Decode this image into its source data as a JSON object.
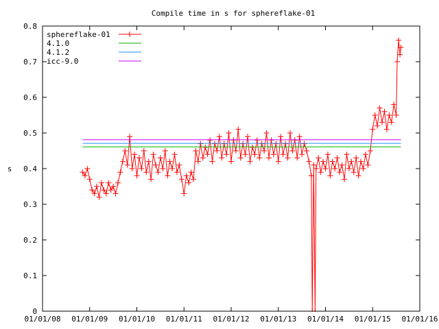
{
  "chart_data": {
    "type": "line",
    "title": "Compile time in s for sphereflake-01",
    "xlabel": "",
    "ylabel": "s",
    "xlim": [
      2008,
      2016
    ],
    "ylim": [
      0,
      0.8
    ],
    "x_ticks": [
      2008,
      2009,
      2010,
      2011,
      2012,
      2013,
      2014,
      2015,
      2016
    ],
    "x_tick_labels": [
      "01/01/08",
      "01/01/09",
      "01/01/10",
      "01/01/11",
      "01/01/12",
      "01/01/13",
      "01/01/14",
      "01/01/15",
      "01/01/16"
    ],
    "y_ticks": [
      0,
      0.1,
      0.2,
      0.3,
      0.4,
      0.5,
      0.6,
      0.7,
      0.8
    ],
    "y_tick_labels": [
      "0",
      "0.1",
      "0.2",
      "0.3",
      "0.4",
      "0.5",
      "0.6",
      "0.7",
      "0.8"
    ],
    "legend_placement": "top-left",
    "series": [
      {
        "name": "sphereflake-01",
        "color": "#ff0000",
        "style": "linespoints",
        "x": [
          2008.85,
          2008.9,
          2008.95,
          2009.0,
          2009.05,
          2009.1,
          2009.15,
          2009.2,
          2009.25,
          2009.3,
          2009.35,
          2009.4,
          2009.45,
          2009.5,
          2009.55,
          2009.6,
          2009.65,
          2009.7,
          2009.75,
          2009.8,
          2009.85,
          2009.9,
          2009.95,
          2010.0,
          2010.05,
          2010.1,
          2010.15,
          2010.2,
          2010.25,
          2010.3,
          2010.35,
          2010.4,
          2010.45,
          2010.5,
          2010.55,
          2010.6,
          2010.65,
          2010.7,
          2010.75,
          2010.8,
          2010.85,
          2010.9,
          2010.95,
          2011.0,
          2011.05,
          2011.1,
          2011.15,
          2011.2,
          2011.25,
          2011.3,
          2011.35,
          2011.4,
          2011.45,
          2011.5,
          2011.55,
          2011.6,
          2011.65,
          2011.7,
          2011.75,
          2011.8,
          2011.85,
          2011.9,
          2011.95,
          2012.0,
          2012.05,
          2012.1,
          2012.15,
          2012.2,
          2012.25,
          2012.3,
          2012.35,
          2012.4,
          2012.45,
          2012.5,
          2012.55,
          2012.6,
          2012.65,
          2012.7,
          2012.75,
          2012.8,
          2012.85,
          2012.9,
          2012.95,
          2013.0,
          2013.05,
          2013.1,
          2013.15,
          2013.2,
          2013.25,
          2013.3,
          2013.35,
          2013.4,
          2013.45,
          2013.5,
          2013.55,
          2013.6,
          2013.65,
          2013.7,
          2013.72,
          2013.75,
          2013.78,
          2013.8,
          2013.85,
          2013.9,
          2013.95,
          2014.0,
          2014.05,
          2014.1,
          2014.15,
          2014.2,
          2014.25,
          2014.3,
          2014.35,
          2014.4,
          2014.45,
          2014.5,
          2014.55,
          2014.6,
          2014.65,
          2014.7,
          2014.75,
          2014.8,
          2014.85,
          2014.9,
          2014.95,
          2015.0,
          2015.05,
          2015.1,
          2015.15,
          2015.2,
          2015.25,
          2015.3,
          2015.35,
          2015.4,
          2015.45,
          2015.5,
          2015.52,
          2015.55,
          2015.58,
          2015.6
        ],
        "y": [
          0.39,
          0.38,
          0.4,
          0.37,
          0.34,
          0.33,
          0.35,
          0.32,
          0.36,
          0.34,
          0.33,
          0.36,
          0.34,
          0.35,
          0.33,
          0.36,
          0.39,
          0.42,
          0.45,
          0.41,
          0.49,
          0.4,
          0.44,
          0.38,
          0.43,
          0.4,
          0.45,
          0.39,
          0.42,
          0.37,
          0.44,
          0.41,
          0.39,
          0.43,
          0.4,
          0.45,
          0.38,
          0.42,
          0.4,
          0.44,
          0.39,
          0.41,
          0.37,
          0.33,
          0.38,
          0.36,
          0.39,
          0.37,
          0.45,
          0.42,
          0.47,
          0.43,
          0.46,
          0.44,
          0.48,
          0.42,
          0.47,
          0.45,
          0.49,
          0.43,
          0.47,
          0.44,
          0.5,
          0.42,
          0.48,
          0.45,
          0.51,
          0.43,
          0.47,
          0.44,
          0.49,
          0.42,
          0.46,
          0.44,
          0.48,
          0.43,
          0.47,
          0.45,
          0.5,
          0.43,
          0.48,
          0.44,
          0.47,
          0.42,
          0.49,
          0.44,
          0.47,
          0.43,
          0.5,
          0.45,
          0.48,
          0.43,
          0.49,
          0.44,
          0.47,
          0.45,
          0.42,
          0.38,
          0.0,
          0.41,
          0.0,
          0.4,
          0.43,
          0.39,
          0.42,
          0.4,
          0.44,
          0.38,
          0.42,
          0.4,
          0.43,
          0.39,
          0.41,
          0.37,
          0.44,
          0.4,
          0.42,
          0.39,
          0.43,
          0.38,
          0.42,
          0.4,
          0.44,
          0.41,
          0.45,
          0.51,
          0.55,
          0.52,
          0.57,
          0.53,
          0.56,
          0.51,
          0.55,
          0.53,
          0.58,
          0.55,
          0.7,
          0.76,
          0.72,
          0.74
        ]
      },
      {
        "name": "4.1.0",
        "color": "#00b000",
        "style": "line",
        "x": [
          2008.85,
          2015.6
        ],
        "y": [
          0.461,
          0.461
        ]
      },
      {
        "name": "4.1.2",
        "color": "#1e8fff",
        "style": "line",
        "x": [
          2008.85,
          2015.6
        ],
        "y": [
          0.471,
          0.471
        ]
      },
      {
        "name": "icc-9.0",
        "color": "#c000ff",
        "style": "line",
        "x": [
          2008.85,
          2015.6
        ],
        "y": [
          0.481,
          0.481
        ]
      }
    ]
  }
}
